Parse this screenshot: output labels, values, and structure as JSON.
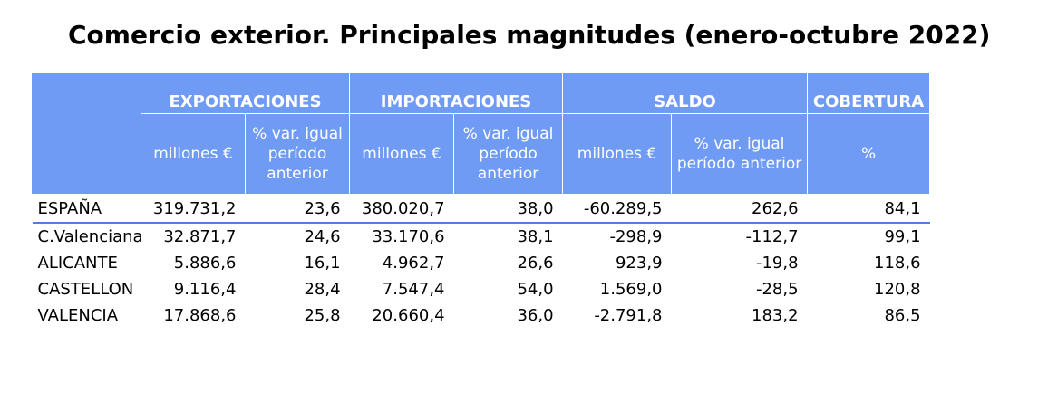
{
  "title": "Comercio exterior. Principales magnitudes (enero-octubre 2022)",
  "header": {
    "groups": [
      "EXPORTACIONES",
      "IMPORTACIONES",
      "SALDO",
      "COBERTURA"
    ],
    "sub": {
      "millones": "millones €",
      "var_line1": "% var. igual",
      "var_line2": "período",
      "var_line3": "anterior",
      "saldo_var_line1": "% var. igual",
      "saldo_var_line2": "período anterior",
      "pct": "%"
    }
  },
  "rows": [
    {
      "name": "ESPAÑA",
      "exp": "319.731,2",
      "exp_var": "23,6",
      "imp": "380.020,7",
      "imp_var": "38,0",
      "saldo": "-60.289,5",
      "saldo_var": "262,6",
      "cob": "84,1"
    },
    {
      "name": "C.Valenciana",
      "exp": "32.871,7",
      "exp_var": "24,6",
      "imp": "33.170,6",
      "imp_var": "38,1",
      "saldo": "-298,9",
      "saldo_var": "-112,7",
      "cob": "99,1"
    },
    {
      "name": "ALICANTE",
      "exp": "5.886,6",
      "exp_var": "16,1",
      "imp": "4.962,7",
      "imp_var": "26,6",
      "saldo": "923,9",
      "saldo_var": "-19,8",
      "cob": "118,6"
    },
    {
      "name": "CASTELLON",
      "exp": "9.116,4",
      "exp_var": "28,4",
      "imp": "7.547,4",
      "imp_var": "54,0",
      "saldo": "1.569,0",
      "saldo_var": "-28,5",
      "cob": "120,8"
    },
    {
      "name": "VALENCIA",
      "exp": "17.868,6",
      "exp_var": "25,8",
      "imp": "20.660,4",
      "imp_var": "36,0",
      "saldo": "-2.791,8",
      "saldo_var": "183,2",
      "cob": "86,5"
    }
  ],
  "colors": {
    "header_bg": "#6f9bf5",
    "rule": "#4f7fdc"
  }
}
